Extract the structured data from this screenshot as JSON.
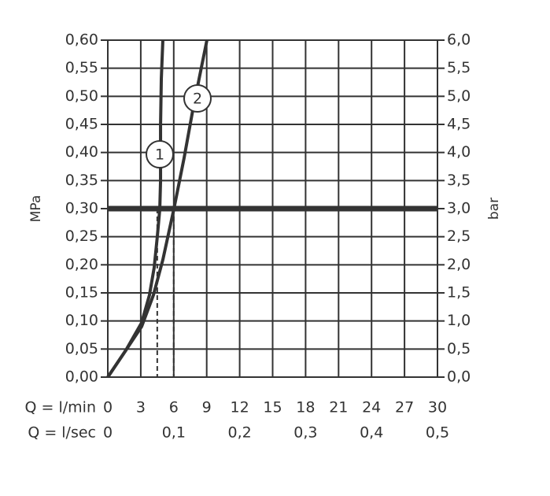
{
  "chart_data": {
    "type": "line",
    "xlabel": "Q = l/min",
    "x2label": "Q = l/sec",
    "ylabel": "MPa",
    "y2label": "bar",
    "xlim": [
      0,
      30
    ],
    "xticks": [
      0,
      3,
      6,
      9,
      12,
      15,
      18,
      21,
      24,
      27,
      30
    ],
    "x2lim": [
      0,
      0.5
    ],
    "x2ticks": [
      0,
      {
        "value": 0.1,
        "label": "0,1"
      },
      {
        "value": 0.2,
        "label": "0,2"
      },
      {
        "value": 0.3,
        "label": "0,3"
      },
      {
        "value": 0.4,
        "label": "0,4"
      },
      {
        "value": 0.5,
        "label": "0,5"
      }
    ],
    "ylim": [
      0,
      0.6
    ],
    "yticks": [
      {
        "value": 0,
        "label": "0,00"
      },
      {
        "value": 0.05,
        "label": "0,05"
      },
      {
        "value": 0.1,
        "label": "0,10"
      },
      {
        "value": 0.15,
        "label": "0,15"
      },
      {
        "value": 0.2,
        "label": "0,20"
      },
      {
        "value": 0.25,
        "label": "0,25"
      },
      {
        "value": 0.3,
        "label": "0,30"
      },
      {
        "value": 0.35,
        "label": "0,35"
      },
      {
        "value": 0.4,
        "label": "0,40"
      },
      {
        "value": 0.45,
        "label": "0,45"
      },
      {
        "value": 0.5,
        "label": "0,50"
      },
      {
        "value": 0.55,
        "label": "0,55"
      },
      {
        "value": 0.6,
        "label": "0,60"
      }
    ],
    "y2lim": [
      0,
      6
    ],
    "y2ticks": [
      {
        "value": 0,
        "label": "0,0"
      },
      {
        "value": 0.5,
        "label": "0,5"
      },
      {
        "value": 1,
        "label": "1,0"
      },
      {
        "value": 1.5,
        "label": "1,5"
      },
      {
        "value": 2,
        "label": "2,0"
      },
      {
        "value": 2.5,
        "label": "2,5"
      },
      {
        "value": 3,
        "label": "3,0"
      },
      {
        "value": 3.5,
        "label": "3,5"
      },
      {
        "value": 4,
        "label": "4,0"
      },
      {
        "value": 4.5,
        "label": "4,5"
      },
      {
        "value": 5,
        "label": "5,0"
      },
      {
        "value": 5.5,
        "label": "5,5"
      },
      {
        "value": 6,
        "label": "6,0"
      }
    ],
    "grid": true,
    "color": "#333333",
    "reference_y": 0.3,
    "reference_x": [
      4.5,
      6
    ],
    "series": [
      {
        "name": "1",
        "color": "#333333",
        "x": [
          0,
          1.65,
          3.08,
          3.79,
          4.22,
          4.51,
          4.73,
          4.8,
          4.8,
          4.87,
          5.01
        ],
        "values": [
          0,
          0.048,
          0.097,
          0.146,
          0.195,
          0.251,
          0.299,
          0.349,
          0.447,
          0.531,
          0.6
        ]
      },
      {
        "name": "2",
        "color": "#333333",
        "x": [
          0,
          1.65,
          3.08,
          4.15,
          5.01,
          6.01,
          6.95,
          7.73,
          8.45,
          9.02
        ],
        "values": [
          0,
          0.048,
          0.09,
          0.146,
          0.209,
          0.299,
          0.391,
          0.475,
          0.545,
          0.6
        ]
      }
    ]
  }
}
